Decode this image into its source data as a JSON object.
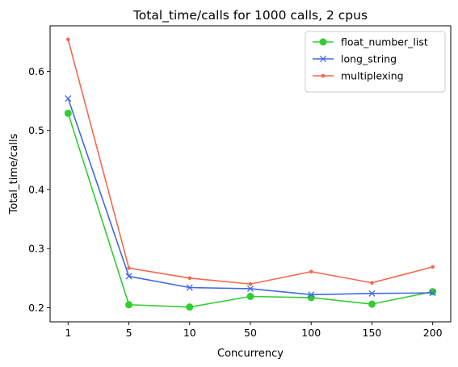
{
  "chart_data": {
    "type": "line",
    "title": "Total_time/calls for 1000 calls, 2 cpus",
    "xlabel": "Concurrency",
    "ylabel": "Total_time/calls",
    "categories": [
      "1",
      "5",
      "10",
      "50",
      "100",
      "150",
      "200"
    ],
    "ylim": [
      0.176,
      0.677
    ],
    "yticks": [
      0.2,
      0.3,
      0.4,
      0.5,
      0.6
    ],
    "ytick_labels": [
      "0.2",
      "0.3",
      "0.4",
      "0.5",
      "0.6"
    ],
    "grid": false,
    "legend_position": "top-right",
    "series": [
      {
        "name": "float_number_list",
        "color": "#32cd32",
        "marker": "circle",
        "values": [
          0.529,
          0.205,
          0.201,
          0.219,
          0.217,
          0.206,
          0.227
        ]
      },
      {
        "name": "long_string",
        "color": "#4169e1",
        "marker": "x",
        "values": [
          0.554,
          0.253,
          0.234,
          0.232,
          0.222,
          0.224,
          0.225
        ]
      },
      {
        "name": "multiplexing",
        "color": "#f4694d",
        "marker": "dot",
        "values": [
          0.654,
          0.267,
          0.25,
          0.24,
          0.261,
          0.242,
          0.269
        ]
      }
    ]
  }
}
